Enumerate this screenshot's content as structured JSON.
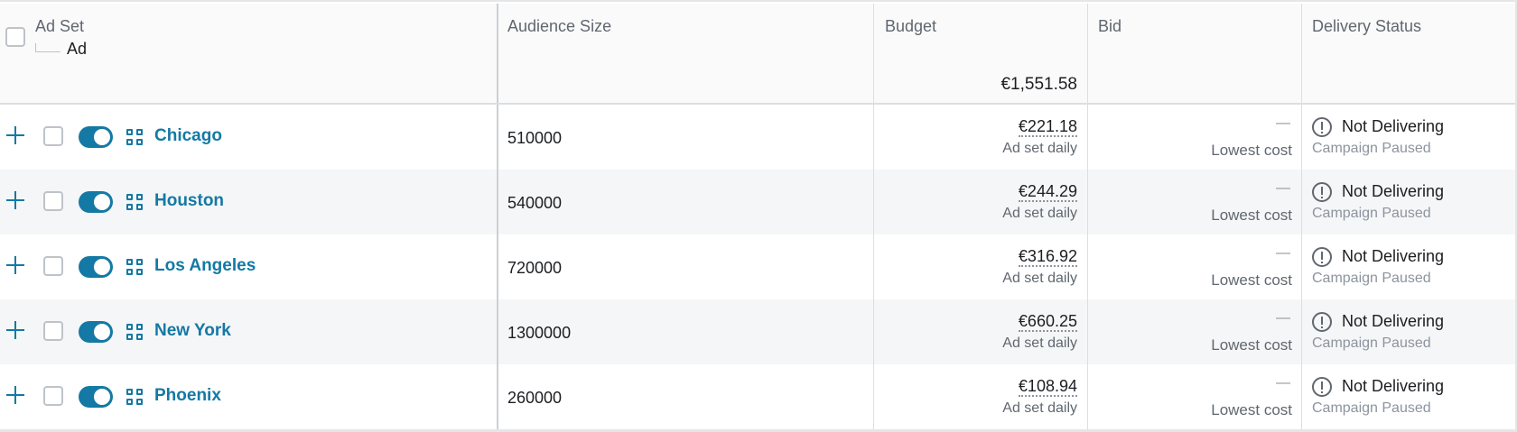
{
  "header": {
    "adset_label": "Ad Set",
    "ad_label": "Ad",
    "audience_label": "Audience Size",
    "budget_label": "Budget",
    "budget_total": "€1,551.58",
    "bid_label": "Bid",
    "delivery_label": "Delivery Status"
  },
  "colors": {
    "accent": "#1479a4",
    "row_alt_bg": "#f5f6f7",
    "header_bg": "#fafafa"
  },
  "icons": {
    "expand": "plus-icon",
    "toggle": "toggle-on-icon",
    "adset": "grid-icon",
    "status": "alert-circle-icon"
  },
  "rows": [
    {
      "name": "Chicago",
      "audience": "510000",
      "budget": "€221.18",
      "budget_type": "Ad set daily",
      "bid": "—",
      "bid_strategy": "Lowest cost",
      "status": "Not Delivering",
      "status_reason": "Campaign Paused",
      "enabled": true
    },
    {
      "name": "Houston",
      "audience": "540000",
      "budget": "€244.29",
      "budget_type": "Ad set daily",
      "bid": "—",
      "bid_strategy": "Lowest cost",
      "status": "Not Delivering",
      "status_reason": "Campaign Paused",
      "enabled": true
    },
    {
      "name": "Los Angeles",
      "audience": "720000",
      "budget": "€316.92",
      "budget_type": "Ad set daily",
      "bid": "—",
      "bid_strategy": "Lowest cost",
      "status": "Not Delivering",
      "status_reason": "Campaign Paused",
      "enabled": true
    },
    {
      "name": "New York",
      "audience": "1300000",
      "budget": "€660.25",
      "budget_type": "Ad set daily",
      "bid": "—",
      "bid_strategy": "Lowest cost",
      "status": "Not Delivering",
      "status_reason": "Campaign Paused",
      "enabled": true
    },
    {
      "name": "Phoenix",
      "audience": "260000",
      "budget": "€108.94",
      "budget_type": "Ad set daily",
      "bid": "—",
      "bid_strategy": "Lowest cost",
      "status": "Not Delivering",
      "status_reason": "Campaign Paused",
      "enabled": true
    }
  ]
}
